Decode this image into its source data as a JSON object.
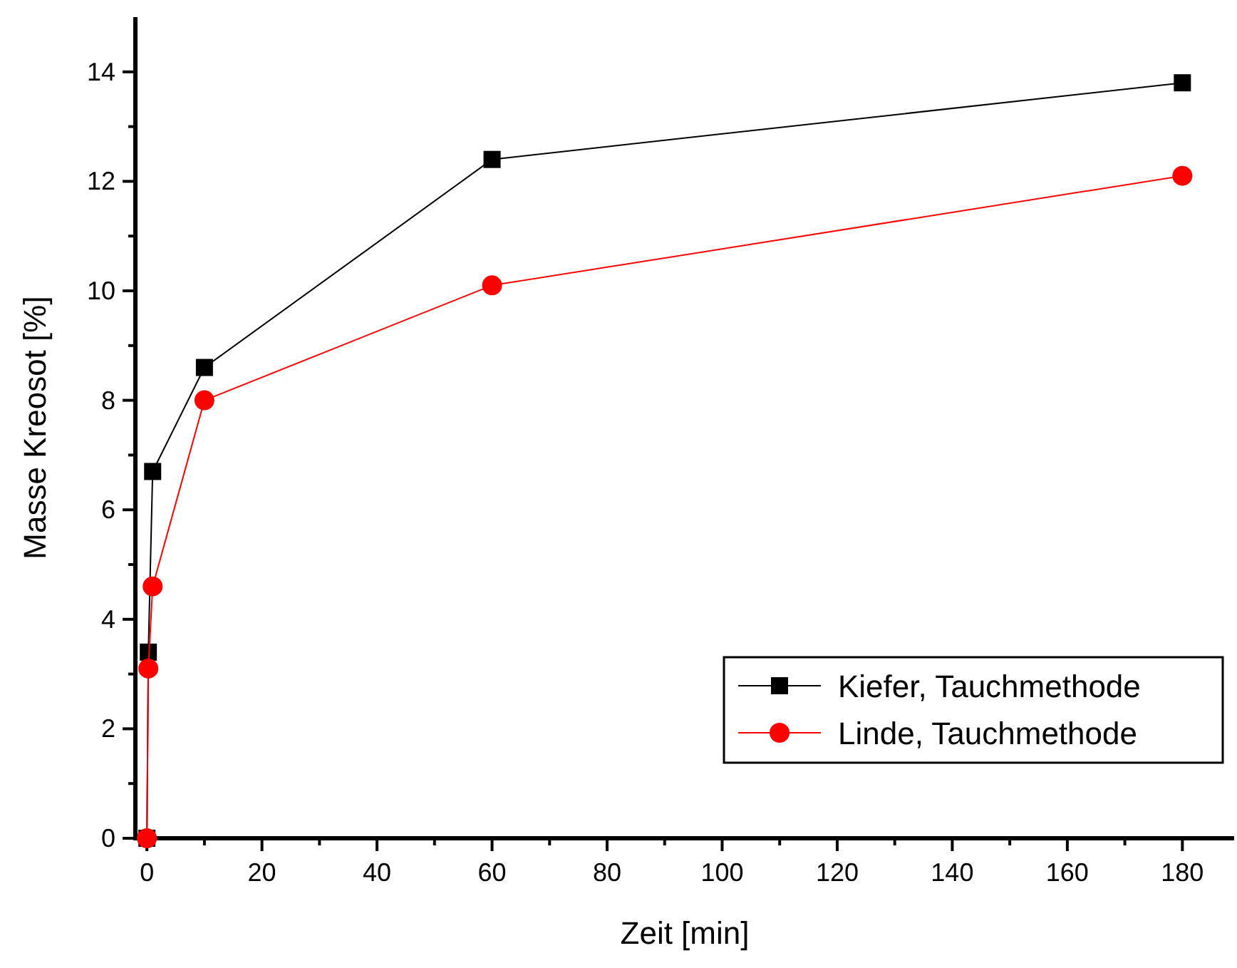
{
  "chart_data": {
    "type": "line",
    "xlabel": "Zeit [min]",
    "ylabel": "Masse Kreosot [%]",
    "x": [
      0,
      0.25,
      1,
      10,
      60,
      180
    ],
    "series": [
      {
        "name": "Kiefer, Tauchmethode",
        "color": "#000000",
        "marker": "square",
        "values": [
          0,
          3.4,
          6.7,
          8.6,
          12.4,
          13.8
        ]
      },
      {
        "name": "Linde, Tauchmethode",
        "color": "#ff0000",
        "marker": "circle",
        "values": [
          0,
          3.1,
          4.6,
          8.0,
          10.1,
          12.1
        ]
      }
    ],
    "xlim": [
      -2,
      189
    ],
    "ylim": [
      0,
      15
    ],
    "xticks": [
      0,
      {
        "value": 10,
        "label": null
      },
      20,
      {
        "value": 30,
        "label": null
      },
      40,
      {
        "value": 50,
        "label": null
      },
      60,
      {
        "value": 70,
        "label": null
      },
      80,
      {
        "value": 90,
        "label": null
      },
      100,
      {
        "value": 110,
        "label": null
      },
      120,
      {
        "value": 130,
        "label": null
      },
      140,
      {
        "value": 150,
        "label": null
      },
      160,
      {
        "value": 170,
        "label": null
      },
      180
    ],
    "yticks": [
      0,
      {
        "value": 1,
        "label": null
      },
      2,
      {
        "value": 3,
        "label": null
      },
      4,
      {
        "value": 5,
        "label": null
      },
      6,
      {
        "value": 7,
        "label": null
      },
      8,
      {
        "value": 9,
        "label": null
      },
      10,
      {
        "value": 11,
        "label": null
      },
      12,
      {
        "value": 13,
        "label": null
      },
      14
    ],
    "grid": false,
    "legend": "bottom right",
    "line_style": "solid"
  }
}
